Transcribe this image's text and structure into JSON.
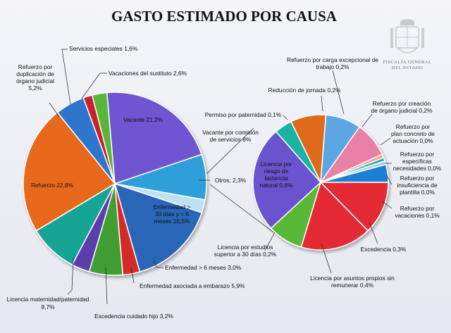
{
  "chart_data": {
    "type": "pie",
    "title": "GASTO ESTIMADO POR CAUSA",
    "main_pie": [
      {
        "name": "Vacante",
        "label": "Vacante 21,2%",
        "value": 21.2,
        "color": "#6f55d3"
      },
      {
        "name": "Vacante por comisión de servicios",
        "label": "Vacante por comisión de servicios 8%",
        "value": 8.0,
        "color": "#2d9fd8"
      },
      {
        "name": "Otros",
        "label": "Otros; 2,3%",
        "value": 2.3,
        "color": "#bfe0f2"
      },
      {
        "name": "Enfermedad > 30 días y < 6 meses",
        "label": "Enfermedad > 30 días y < 6 meses 15,5%",
        "value": 15.5,
        "color": "#2a66b8"
      },
      {
        "name": "Enfermedad > 6 meses",
        "label": "Enfermedad > 6 meses 3,0%",
        "value": 3.0,
        "color": "#d42a2a"
      },
      {
        "name": "Enfermedad asociada a embarazo",
        "label": "Enfermedad asociada a embarazo 5,9%",
        "value": 5.9,
        "color": "#3f9e34"
      },
      {
        "name": "Excedencia cuidado hijo",
        "label": "Excedencia cuidado hijo 3,2%",
        "value": 3.2,
        "color": "#5b3cae"
      },
      {
        "name": "Licencia maternidad/paternidad",
        "label": "Licencia maternidad/paternidad 8,7%",
        "value": 8.7,
        "color": "#12a594"
      },
      {
        "name": "Refuerzo",
        "label": "Refuerzo 22,8%",
        "value": 22.8,
        "color": "#e8671e"
      },
      {
        "name": "Refuerzo por duplicación de órgano judicial",
        "label": "Refuerzo por duplicación de órgano judicial 5,2%",
        "value": 5.2,
        "color": "#2f74cc"
      },
      {
        "name": "Servicios especiales",
        "label": "Servicios especiales 1,6%",
        "value": 1.6,
        "color": "#c8232d"
      },
      {
        "name": "Vacaciones del sustituto",
        "label": "Vacaciones del sustituto 2,6%",
        "value": 2.6,
        "color": "#59b638"
      }
    ],
    "secondary_pie": [
      {
        "name": "Reducción de jornada",
        "label": "Reducción de jornada 0,2%",
        "value": 0.2,
        "color": "#e06a1e"
      },
      {
        "name": "Refuerzo por carga excepcional de trabajo",
        "label": "Refuerzo por carga excepcional de trabajo 0,2%",
        "value": 0.2,
        "color": "#5ba7e3"
      },
      {
        "name": "Refuerzo por creación de órgano judicial",
        "label": "Refuerzo por creación de órgano judicial 0,2%",
        "value": 0.2,
        "color": "#e980a5"
      },
      {
        "name": "Refuerzo por plan concreto de actuación",
        "label": "Refuerzo por plan concreto de actuación 0,0%",
        "value": 0.02,
        "color": "#f4a77b"
      },
      {
        "name": "Refuerzo por específicas necesidades",
        "label": "Refuerzo por específicas necesidades 0,0%",
        "value": 0.02,
        "color": "#2ea9b0"
      },
      {
        "name": "Refuerzo por insuficiencia de plantilla",
        "label": "Refuerzo por insuficiencia de plantilla 0,0%",
        "value": 0.02,
        "color": "#a1cbec"
      },
      {
        "name": "Refuerzo por vacaciones",
        "label": "Refuerzo por vacaciones 0,1%",
        "value": 0.1,
        "color": "#1c7fd6"
      },
      {
        "name": "Excedencia",
        "label": "Excedencia 0,3%",
        "value": 0.3,
        "color": "#e42a35"
      },
      {
        "name": "Licencia por asuntos propios sin remunerar",
        "label": "Licencia por asuntos propios sin remunerar 0,4%",
        "value": 0.4,
        "color": "#e42a35"
      },
      {
        "name": "Licencia por estudios superior a 30 días",
        "label": "Licencia por estudios superior a 30 días 0,2%",
        "value": 0.2,
        "color": "#5ab837"
      },
      {
        "name": "Licencia por riesgo de lactancia natural",
        "label": "Licencia por riesgo de lactancia natural 0,6%",
        "value": 0.6,
        "color": "#6b52cf"
      },
      {
        "name": "Permiso por paternidad",
        "label": "Permiso por paternidad 0,1%",
        "value": 0.1,
        "color": "#1bb3a2"
      }
    ],
    "legend": "none"
  },
  "logo": {
    "icon": "coat-of-arms-icon",
    "line1": "FISCALÍA GENERAL",
    "line2": "DEL ESTADO"
  },
  "labels": {
    "servicios": "Servicios especiales 1,6%",
    "refuerzo_dup_1": "Refuerzo por",
    "refuerzo_dup_2": "duplicación de",
    "refuerzo_dup_3": "órgano judicial",
    "refuerzo_dup_4": "5,2%",
    "vacaciones": "Vacaciones del sustituto 2,6%",
    "vacante": "Vacante 21,2%",
    "permiso_pat": "Permiso por paternidad 0,1%",
    "vac_comision_1": "Vacante por comisión",
    "vac_comision_2": "de servicios 8%",
    "refuerzo": "Refuerzo 22,8%",
    "otros": "Otros; 2,3%",
    "enf30_1": "Enfermedad >",
    "enf30_2": "30 días y < 6",
    "enf30_3": "meses 15,5%",
    "enf6": "Enfermedad > 6 meses 3,0%",
    "enf_emb": "Enfermedad asociada a embarazo 5,9%",
    "lic_mat_1": "Licencia maternidad/paternidad",
    "lic_mat_2": "8,7%",
    "exc_hijo": "Excedencia cuidado hijo 3,2%",
    "carga_1": "Refuerzo por carga excepcional de",
    "carga_2": "trabajo 0,2%",
    "reduccion": "Reducción de jornada 0,2%",
    "creacion_1": "Refuerzo por creación",
    "creacion_2": "de órgano judicial 0,2%",
    "plan_1": "Refuerzo por",
    "plan_2": "plan concreto de",
    "plan_3": "actuación  0,0%",
    "espec_1": "Refuerzo por",
    "espec_2": "específicas",
    "espec_3": "necesidades  0,0%",
    "insuf_1": "Refuerzo por",
    "insuf_2": "insuficiencia de",
    "insuf_3": "plantilla  0,0%",
    "vacs_1": "Refuerzo por",
    "vacs_2": "vacaciones  0,1%",
    "excedencia": "Excedencia 0,3%",
    "asuntos_1": "Licencia por asuntos propios sin",
    "asuntos_2": "remunerar  0,4%",
    "estudios_1": "Licencia por estudios",
    "estudios_2": "superior a 30 días 0,2%",
    "lactancia_1": "Licencia por",
    "lactancia_2": "riesgo de",
    "lactancia_3": "lactancia",
    "lactancia_4": "natural  0,6%"
  }
}
